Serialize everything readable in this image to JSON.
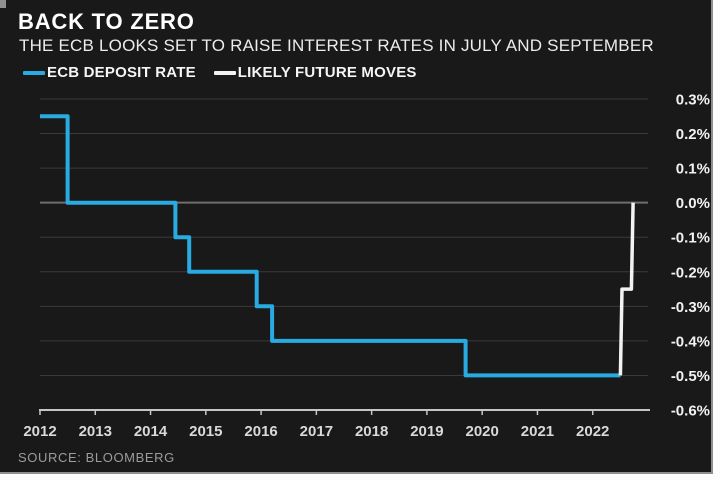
{
  "chart": {
    "title": "BACK TO ZERO",
    "subtitle": "THE ECB LOOKS SET TO RAISE INTEREST RATES IN JULY AND SEPTEMBER",
    "source": "SOURCE: BLOOMBERG",
    "series_labels": [
      "ECB DEPOSIT RATE",
      "LIKELY FUTURE MOVES"
    ]
  },
  "chart_data": {
    "type": "line",
    "step": true,
    "title": "BACK TO ZERO",
    "subtitle": "THE ECB LOOKS SET TO RAISE INTEREST RATES IN JULY AND SEPTEMBER",
    "source": "SOURCE: BLOOMBERG",
    "legend_position": "top-left",
    "grid": "horizontal",
    "x_axis": {
      "range": [
        2012,
        2023
      ],
      "tick_years": [
        2012,
        2013,
        2014,
        2015,
        2016,
        2017,
        2018,
        2019,
        2020,
        2021,
        2022
      ],
      "tick_labels": [
        "2012",
        "2013",
        "2014",
        "2015",
        "2016",
        "2017",
        "2018",
        "2019",
        "2020",
        "2021",
        "2022"
      ]
    },
    "y_axis": {
      "range": [
        -0.6,
        0.3
      ],
      "unit": "%",
      "ticks": [
        0.3,
        0.2,
        0.1,
        0.0,
        -0.1,
        -0.2,
        -0.3,
        -0.4,
        -0.5,
        -0.6
      ],
      "tick_labels": [
        "0.3%",
        "0.2%",
        "0.1%",
        "0.0%",
        "-0.1%",
        "-0.2%",
        "-0.3%",
        "-0.4%",
        "-0.5%",
        "-0.6%"
      ],
      "zero_line_highlighted": true
    },
    "series": [
      {
        "name": "ECB DEPOSIT RATE",
        "color": "#29abe2",
        "points": [
          [
            2012.0,
            0.25
          ],
          [
            2012.5,
            0.25
          ],
          [
            2012.5,
            0.0
          ],
          [
            2014.45,
            0.0
          ],
          [
            2014.45,
            -0.1
          ],
          [
            2014.7,
            -0.1
          ],
          [
            2014.7,
            -0.2
          ],
          [
            2015.92,
            -0.2
          ],
          [
            2015.92,
            -0.3
          ],
          [
            2016.2,
            -0.3
          ],
          [
            2016.2,
            -0.4
          ],
          [
            2019.7,
            -0.4
          ],
          [
            2019.7,
            -0.5
          ],
          [
            2022.5,
            -0.5
          ]
        ]
      },
      {
        "name": "LIKELY FUTURE MOVES",
        "color": "#f2f2f2",
        "points": [
          [
            2022.5,
            -0.5
          ],
          [
            2022.53,
            -0.25
          ],
          [
            2022.7,
            -0.25
          ],
          [
            2022.73,
            0.0
          ]
        ]
      }
    ]
  },
  "colors": {
    "background": "#191919",
    "accent_blue": "#29abe2",
    "future_white": "#f2f2f2",
    "gridline": "#3a3a3a",
    "zero_line": "#6f6f6f",
    "axis": "#c6c6c6",
    "frame": "#8f8f8f"
  }
}
